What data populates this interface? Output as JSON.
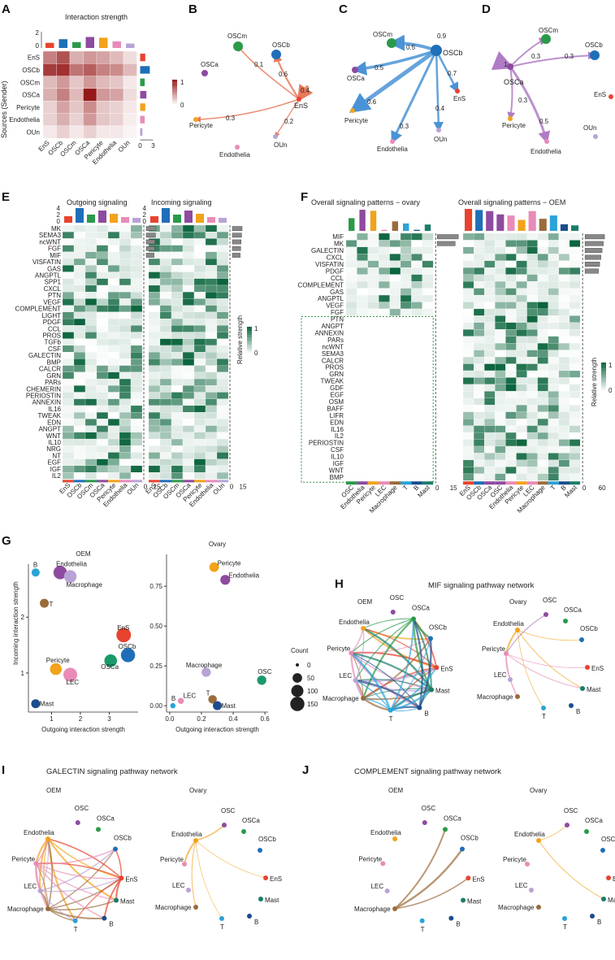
{
  "panels": [
    "A",
    "B",
    "C",
    "D",
    "E",
    "F",
    "G",
    "H",
    "I",
    "J"
  ],
  "colors": {
    "EnS": "#e8432e",
    "OSCb": "#1f6fb8",
    "OSCm": "#2a9a4a",
    "OSCa": "#8e4b9f",
    "Pericyte": "#f2a21b",
    "Endothelia": "#e98bb8",
    "OUn": "#b8a3d6",
    "OSC": "#8e4b9f",
    "LEC": "#e98bb8",
    "Macrophage": "#9b6b3a",
    "T": "#2aa3d8",
    "B": "#1b4d8c",
    "Mast": "#1a7d6a",
    "Endothelia2": "#f2a21b"
  },
  "panelA": {
    "title": "Interaction strength",
    "ylabel": "Sources (Sender)",
    "rows": [
      "EnS",
      "OSCb",
      "OSCm",
      "OSCa",
      "Pericyte",
      "Endothelia",
      "OUn"
    ],
    "cols": [
      "EnS",
      "OSCb",
      "OSCm",
      "OSCa",
      "Pericyte",
      "Endothelia",
      "OUn"
    ],
    "matrix": [
      [
        0.55,
        0.75,
        0.35,
        0.45,
        0.4,
        0.3,
        0.15
      ],
      [
        0.85,
        0.9,
        0.6,
        0.7,
        0.55,
        0.5,
        0.3
      ],
      [
        0.3,
        0.45,
        0.25,
        0.45,
        0.3,
        0.25,
        0.1
      ],
      [
        0.35,
        0.55,
        0.3,
        1.0,
        0.45,
        0.4,
        0.15
      ],
      [
        0.2,
        0.4,
        0.25,
        0.5,
        0.25,
        0.2,
        0.1
      ],
      [
        0.2,
        0.35,
        0.2,
        0.45,
        0.25,
        0.2,
        0.08
      ],
      [
        0.1,
        0.2,
        0.1,
        0.2,
        0.1,
        0.1,
        0.05
      ]
    ],
    "legend_max": "1",
    "legend_min": "0",
    "top_axis": [
      "2",
      "0"
    ],
    "right_axis": [
      "0",
      "3"
    ]
  },
  "panelB": {
    "center": "EnS",
    "weights": [
      "0.1",
      "0.6",
      "0.4",
      "0.3",
      "0.2"
    ],
    "nodes": [
      "OSCm",
      "OSCb",
      "OSCa",
      "Pericyte",
      "Endothelia",
      "OUn"
    ]
  },
  "panelC": {
    "center": "OSCb",
    "weights": [
      "0.5",
      "0.9",
      "0.5",
      "0.7",
      "0.6",
      "0.4",
      "0.3"
    ],
    "nodes": [
      "OSCm",
      "OSCa",
      "EnS",
      "Pericyte",
      "Endothelia",
      "OUn"
    ]
  },
  "panelD": {
    "center": "OSCa",
    "weights": [
      "1",
      "0.3",
      "0.3",
      "0.3",
      "0.5"
    ],
    "nodes": [
      "OSCm",
      "OSCb",
      "EnS",
      "Pericyte",
      "OUn",
      "Endothelia"
    ]
  },
  "panelE": {
    "title_out": "Outgoing signaling",
    "title_in": "Incoming signaling",
    "pathways": [
      {
        "n": "MK",
        "c": "#222"
      },
      {
        "n": "SEMA3",
        "c": "#222"
      },
      {
        "n": "ncWNT",
        "c": "#d0362b"
      },
      {
        "n": "FGF",
        "c": "#222"
      },
      {
        "n": "MIF",
        "c": "#1f9ad6"
      },
      {
        "n": "VISFATIN",
        "c": "#222"
      },
      {
        "n": "GAS",
        "c": "#222"
      },
      {
        "n": "ANGPTL",
        "c": "#222"
      },
      {
        "n": "SPP1",
        "c": "#222"
      },
      {
        "n": "CXCL",
        "c": "#222"
      },
      {
        "n": "PTN",
        "c": "#222"
      },
      {
        "n": "VEGF",
        "c": "#222"
      },
      {
        "n": "COMPLEMENT",
        "c": "#1f9ad6"
      },
      {
        "n": "LIGHT",
        "c": "#222"
      },
      {
        "n": "PDGF",
        "c": "#222"
      },
      {
        "n": "CCL",
        "c": "#222"
      },
      {
        "n": "PROS",
        "c": "#222"
      },
      {
        "n": "TGFb",
        "c": "#222"
      },
      {
        "n": "CSF",
        "c": "#7a3f9e"
      },
      {
        "n": "GALECTIN",
        "c": "#1f9ad6"
      },
      {
        "n": "BMP",
        "c": "#d0362b"
      },
      {
        "n": "CALCR",
        "c": "#222"
      },
      {
        "n": "GRN",
        "c": "#222"
      },
      {
        "n": "PARs",
        "c": "#7a3f9e"
      },
      {
        "n": "CHEMERIN",
        "c": "#222"
      },
      {
        "n": "PERIOSTIN",
        "c": "#222"
      },
      {
        "n": "ANNEXIN",
        "c": "#7a3f9e"
      },
      {
        "n": "IL16",
        "c": "#7a3f9e"
      },
      {
        "n": "TWEAK",
        "c": "#222"
      },
      {
        "n": "EDN",
        "c": "#222"
      },
      {
        "n": "ANGPT",
        "c": "#222"
      },
      {
        "n": "WNT",
        "c": "#222"
      },
      {
        "n": "IL10",
        "c": "#7a3f9e"
      },
      {
        "n": "NRG",
        "c": "#222"
      },
      {
        "n": "NT",
        "c": "#222"
      },
      {
        "n": "EGF",
        "c": "#222"
      },
      {
        "n": "IGF",
        "c": "#222"
      },
      {
        "n": "IL2",
        "c": "#7a3f9e"
      }
    ],
    "cols": [
      "EnS",
      "OSCb",
      "OSCm",
      "OSCa",
      "Pericyte",
      "Endothelia",
      "OUn"
    ],
    "legend_title": "Relative strength",
    "legend_max": "1",
    "legend_min": "0",
    "top_axis": [
      "4",
      "2",
      "0"
    ],
    "right_axis": [
      "0",
      "15"
    ]
  },
  "panelF": {
    "title_ovary": "Overall signaling patterns − ovary",
    "title_oem": "Overall signaling patterns − OEM",
    "ovary_pathways": [
      {
        "n": "MIF",
        "c": "#1f9ad6"
      },
      {
        "n": "MK",
        "c": "#222"
      },
      {
        "n": "GALECTIN",
        "c": "#1f9ad6"
      },
      {
        "n": "CXCL",
        "c": "#222"
      },
      {
        "n": "VISFATIN",
        "c": "#222"
      },
      {
        "n": "PDGF",
        "c": "#222"
      },
      {
        "n": "CCL",
        "c": "#222"
      },
      {
        "n": "COMPLEMENT",
        "c": "#1f9ad6"
      },
      {
        "n": "GAS",
        "c": "#222"
      },
      {
        "n": "ANGPTL",
        "c": "#222"
      },
      {
        "n": "VEGF",
        "c": "#222"
      },
      {
        "n": "FGF",
        "c": "#222"
      }
    ],
    "oem_only": [
      {
        "n": "PTN",
        "c": "#222"
      },
      {
        "n": "ANGPT",
        "c": "#222"
      },
      {
        "n": "ANNEXIN",
        "c": "#7a3f9e"
      },
      {
        "n": "PARs",
        "c": "#7a3f9e"
      },
      {
        "n": "ncWNT",
        "c": "#d0362b"
      },
      {
        "n": "SEMA3",
        "c": "#222"
      },
      {
        "n": "CALCR",
        "c": "#222"
      },
      {
        "n": "PROS",
        "c": "#222"
      },
      {
        "n": "GRN",
        "c": "#222"
      },
      {
        "n": "TWEAK",
        "c": "#222"
      },
      {
        "n": "GDF",
        "c": "#222"
      },
      {
        "n": "EGF",
        "c": "#222"
      },
      {
        "n": "OSM",
        "c": "#7a3f9e"
      },
      {
        "n": "BAFF",
        "c": "#222"
      },
      {
        "n": "LIFR",
        "c": "#222"
      },
      {
        "n": "EDN",
        "c": "#222"
      },
      {
        "n": "IL16",
        "c": "#7a3f9e"
      },
      {
        "n": "IL2",
        "c": "#7a3f9e"
      },
      {
        "n": "PERIOSTIN",
        "c": "#222"
      },
      {
        "n": "CSF",
        "c": "#7a3f9e"
      },
      {
        "n": "IL10",
        "c": "#7a3f9e"
      },
      {
        "n": "IGF",
        "c": "#222"
      },
      {
        "n": "WNT",
        "c": "#222"
      },
      {
        "n": "BMP",
        "c": "#d0362b"
      }
    ],
    "ovary_cols": [
      "OSC",
      "Endothelia",
      "Pericyte",
      "LEC",
      "Macrophage",
      "T",
      "B",
      "Mast"
    ],
    "oem_cols": [
      "EnS",
      "OSCb",
      "OSCa",
      "OSC",
      "Endothelia",
      "Pericyte",
      "LEC",
      "Macrophage",
      "T",
      "B",
      "Mast"
    ],
    "ovary_axis": [
      "0",
      "15"
    ],
    "oem_axis": [
      "0",
      "60"
    ],
    "legend_title": "Relative strength",
    "legend_max": "1",
    "legend_min": "0"
  },
  "chart_data": [
    {
      "type": "scatter",
      "title": "OEM",
      "xlabel": "Outgoing interaction strength",
      "ylabel": "Incoming interaction strength",
      "xticks": [
        "1",
        "2",
        "3"
      ],
      "yticks": [
        "1",
        "2"
      ],
      "points": [
        {
          "label": "B",
          "x": 0.45,
          "y": 2.8,
          "count": 30
        },
        {
          "label": "Endothelia",
          "x": 1.3,
          "y": 2.8,
          "count": 130
        },
        {
          "label": "Macrophage",
          "x": 1.65,
          "y": 2.73,
          "count": 110
        },
        {
          "label": "T",
          "x": 0.75,
          "y": 2.25,
          "count": 40
        },
        {
          "label": "EnS",
          "x": 3.5,
          "y": 1.68,
          "count": 160
        },
        {
          "label": "OSCb",
          "x": 3.65,
          "y": 1.32,
          "count": 150
        },
        {
          "label": "OSCa",
          "x": 3.05,
          "y": 1.22,
          "count": 110
        },
        {
          "label": "Pericyte",
          "x": 1.15,
          "y": 1.07,
          "count": 90
        },
        {
          "label": "LEC",
          "x": 1.65,
          "y": 0.97,
          "count": 140
        },
        {
          "label": "Mast",
          "x": 0.45,
          "y": 0.45,
          "count": 40
        }
      ]
    },
    {
      "type": "scatter",
      "title": "Ovary",
      "xlabel": "Outgoing interaction strength",
      "ylabel": "",
      "xticks": [
        "0.0",
        "0.2",
        "0.4",
        "0.6"
      ],
      "yticks": [
        "0.00",
        "0.25",
        "0.50",
        "0.75"
      ],
      "points": [
        {
          "label": "Pericyte",
          "x": 0.28,
          "y": 0.87,
          "count": 50
        },
        {
          "label": "Endothelia",
          "x": 0.35,
          "y": 0.79,
          "count": 55
        },
        {
          "label": "Macrophage",
          "x": 0.23,
          "y": 0.21,
          "count": 45
        },
        {
          "label": "OSC",
          "x": 0.58,
          "y": 0.16,
          "count": 45
        },
        {
          "label": "T",
          "x": 0.27,
          "y": 0.04,
          "count": 35
        },
        {
          "label": "LEC",
          "x": 0.07,
          "y": 0.03,
          "count": 10
        },
        {
          "label": "Mast",
          "x": 0.3,
          "y": 0.0,
          "count": 40
        },
        {
          "label": "B",
          "x": 0.02,
          "y": 0.0,
          "count": 5
        }
      ],
      "legend_title": "Count",
      "legend_values": [
        "0",
        "50",
        "100",
        "150"
      ]
    }
  ],
  "panelH": {
    "title": "MIF signaling pathway network",
    "sub1": "OEM",
    "sub2": "Ovary"
  },
  "panelI": {
    "title": "GALECTIN signaling pathway network",
    "sub1": "OEM",
    "sub2": "Ovary"
  },
  "panelJ": {
    "title": "COMPLEMENT signaling pathway network",
    "sub1": "OEM",
    "sub2": "Ovary"
  },
  "network_nodes": [
    "OSC",
    "OSCa",
    "Endothelia",
    "OSCb",
    "Pericyte",
    "EnS",
    "LEC",
    "Mast",
    "Macrophage",
    "T",
    "B"
  ]
}
